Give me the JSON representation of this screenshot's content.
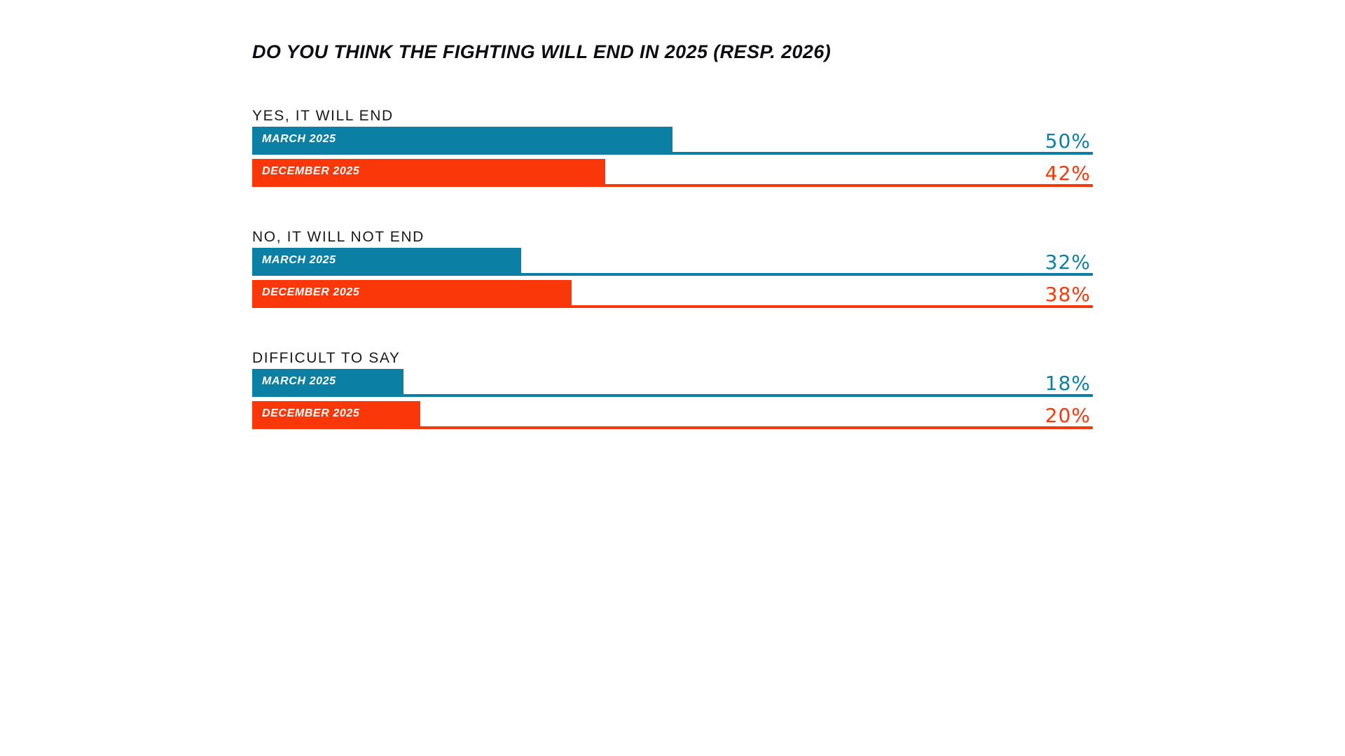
{
  "title": "DO YOU THINK THE FIGHTING WILL END IN 2025 (RESP. 2026)",
  "colors": {
    "march": "#0C80A4",
    "december": "#FA3708",
    "title_text": "#0E0E12",
    "heading_text": "#1A1A1A",
    "bar_label_text": "#FFFFFF",
    "background": "#FFFFFF"
  },
  "chart_data": {
    "type": "bar",
    "orientation": "horizontal",
    "title": "DO YOU THINK THE FIGHTING WILL END IN 2025 (RESP. 2026)",
    "unit": "percent",
    "axis_max": 100,
    "grid": false,
    "legend_position": "labels-inside-bars",
    "series_names": [
      "MARCH 2025",
      "DECEMBER 2025"
    ],
    "groups": [
      {
        "category": "YES, IT WILL END",
        "series": [
          {
            "name": "MARCH 2025",
            "value": 50,
            "label": "50%"
          },
          {
            "name": "DECEMBER 2025",
            "value": 42,
            "label": "42%"
          }
        ]
      },
      {
        "category": "NO, IT WILL NOT END",
        "series": [
          {
            "name": "MARCH 2025",
            "value": 32,
            "label": "32%"
          },
          {
            "name": "DECEMBER 2025",
            "value": 38,
            "label": "38%"
          }
        ]
      },
      {
        "category": "DIFFICULT TO SAY",
        "series": [
          {
            "name": "MARCH 2025",
            "value": 18,
            "label": "18%"
          },
          {
            "name": "DECEMBER 2025",
            "value": 20,
            "label": "20%"
          }
        ]
      }
    ]
  }
}
